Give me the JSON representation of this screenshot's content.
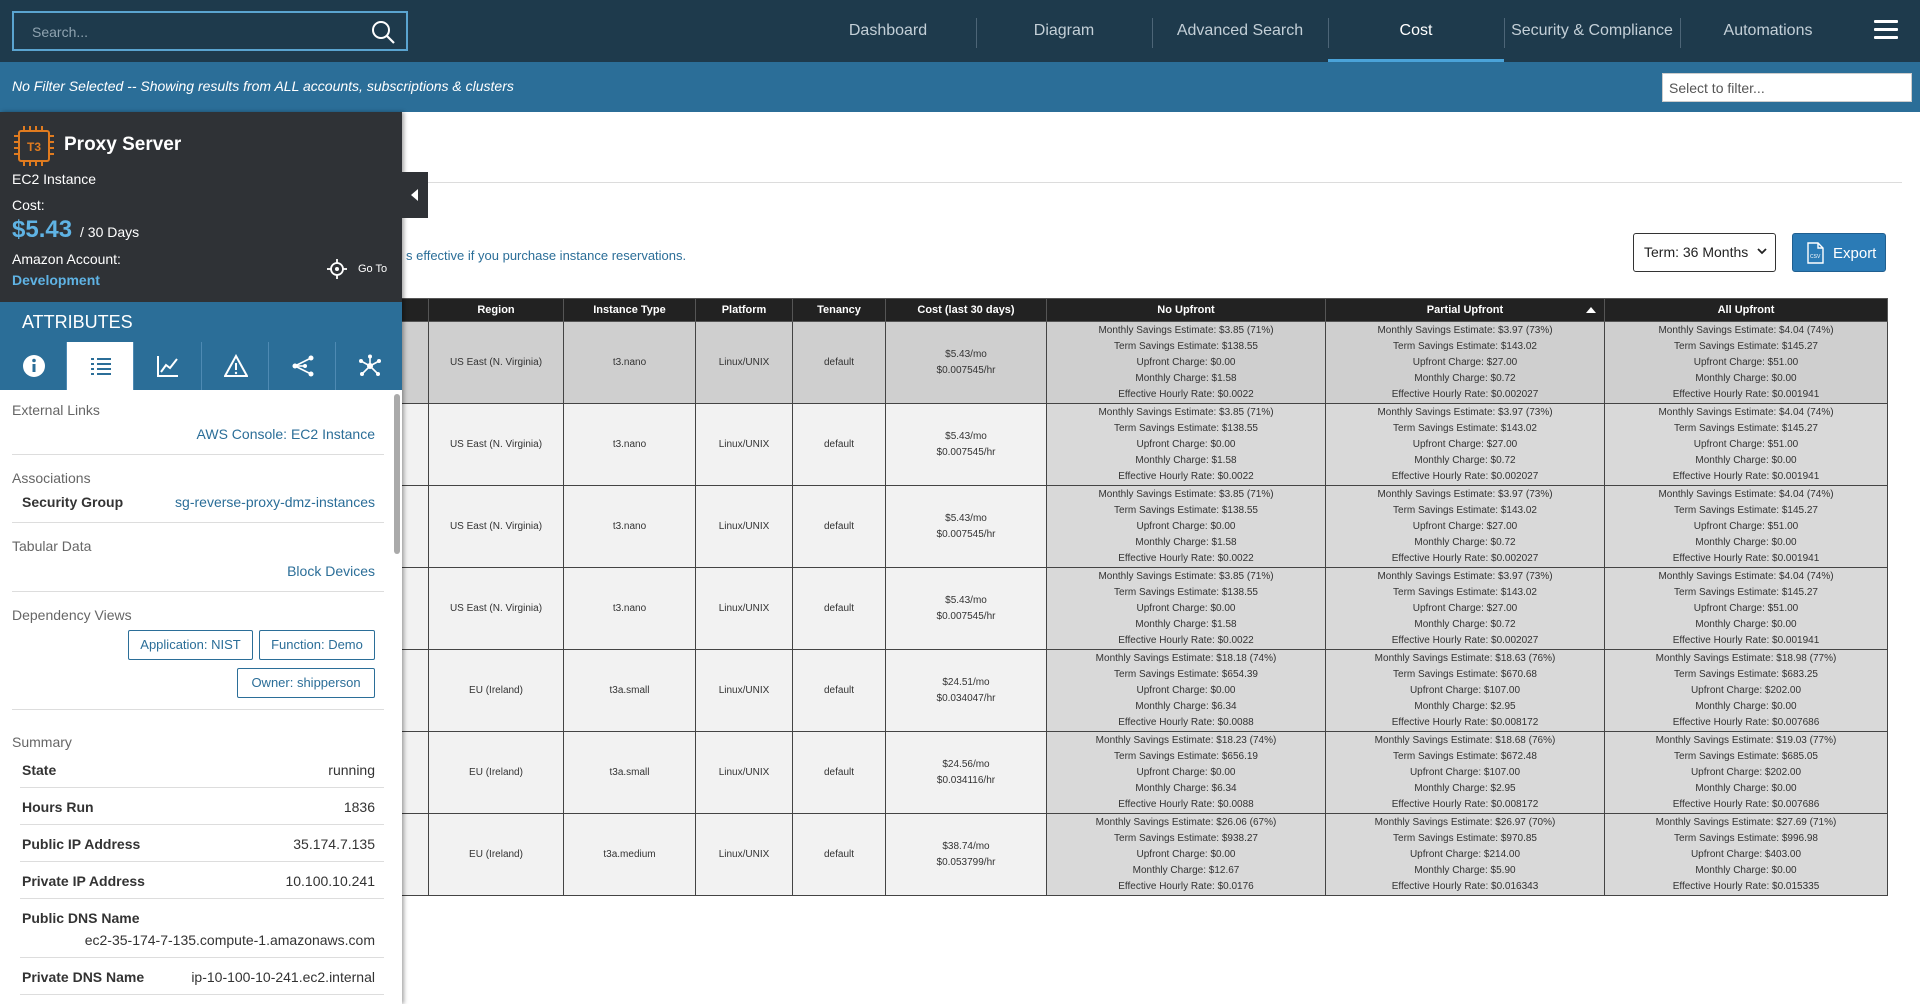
{
  "search": {
    "placeholder": "Search..."
  },
  "nav": {
    "tabs": [
      "Dashboard",
      "Diagram",
      "Advanced Search",
      "Cost",
      "Security & Compliance",
      "Automations"
    ],
    "active": "Cost"
  },
  "filter": {
    "text": "No Filter Selected -- Showing results from ALL accounts, subscriptions & clusters",
    "placeholder": "Select to filter..."
  },
  "main": {
    "info_text": "s effective if you purchase instance reservations.",
    "term_label": "Term: 36 Months",
    "export_label": "Export"
  },
  "table": {
    "headers": [
      "Region",
      "Instance Type",
      "Platform",
      "Tenancy",
      "Cost (last 30 days)",
      "No Upfront",
      "Partial Upfront",
      "All Upfront"
    ],
    "rows": [
      {
        "region": "US East (N. Virginia)",
        "type": "t3.nano",
        "platform": "Linux/UNIX",
        "tenancy": "default",
        "cost": [
          "$5.43/mo",
          "$0.007545/hr"
        ],
        "no": [
          "Monthly Savings Estimate: $3.85 (71%)",
          "Term Savings Estimate: $138.55",
          "Upfront Charge: $0.00",
          "Monthly Charge: $1.58",
          "Effective Hourly Rate: $0.0022"
        ],
        "partial": [
          "Monthly Savings Estimate: $3.97 (73%)",
          "Term Savings Estimate: $143.02",
          "Upfront Charge: $27.00",
          "Monthly Charge: $0.72",
          "Effective Hourly Rate: $0.002027"
        ],
        "all": [
          "Monthly Savings Estimate: $4.04 (74%)",
          "Term Savings Estimate: $145.27",
          "Upfront Charge: $51.00",
          "Monthly Charge: $0.00",
          "Effective Hourly Rate: $0.001941"
        ]
      },
      {
        "region": "US East (N. Virginia)",
        "type": "t3.nano",
        "platform": "Linux/UNIX",
        "tenancy": "default",
        "cost": [
          "$5.43/mo",
          "$0.007545/hr"
        ],
        "no": [
          "Monthly Savings Estimate: $3.85 (71%)",
          "Term Savings Estimate: $138.55",
          "Upfront Charge: $0.00",
          "Monthly Charge: $1.58",
          "Effective Hourly Rate: $0.0022"
        ],
        "partial": [
          "Monthly Savings Estimate: $3.97 (73%)",
          "Term Savings Estimate: $143.02",
          "Upfront Charge: $27.00",
          "Monthly Charge: $0.72",
          "Effective Hourly Rate: $0.002027"
        ],
        "all": [
          "Monthly Savings Estimate: $4.04 (74%)",
          "Term Savings Estimate: $145.27",
          "Upfront Charge: $51.00",
          "Monthly Charge: $0.00",
          "Effective Hourly Rate: $0.001941"
        ]
      },
      {
        "region": "US East (N. Virginia)",
        "type": "t3.nano",
        "platform": "Linux/UNIX",
        "tenancy": "default",
        "cost": [
          "$5.43/mo",
          "$0.007545/hr"
        ],
        "no": [
          "Monthly Savings Estimate: $3.85 (71%)",
          "Term Savings Estimate: $138.55",
          "Upfront Charge: $0.00",
          "Monthly Charge: $1.58",
          "Effective Hourly Rate: $0.0022"
        ],
        "partial": [
          "Monthly Savings Estimate: $3.97 (73%)",
          "Term Savings Estimate: $143.02",
          "Upfront Charge: $27.00",
          "Monthly Charge: $0.72",
          "Effective Hourly Rate: $0.002027"
        ],
        "all": [
          "Monthly Savings Estimate: $4.04 (74%)",
          "Term Savings Estimate: $145.27",
          "Upfront Charge: $51.00",
          "Monthly Charge: $0.00",
          "Effective Hourly Rate: $0.001941"
        ]
      },
      {
        "region": "US East (N. Virginia)",
        "type": "t3.nano",
        "platform": "Linux/UNIX",
        "tenancy": "default",
        "cost": [
          "$5.43/mo",
          "$0.007545/hr"
        ],
        "no": [
          "Monthly Savings Estimate: $3.85 (71%)",
          "Term Savings Estimate: $138.55",
          "Upfront Charge: $0.00",
          "Monthly Charge: $1.58",
          "Effective Hourly Rate: $0.0022"
        ],
        "partial": [
          "Monthly Savings Estimate: $3.97 (73%)",
          "Term Savings Estimate: $143.02",
          "Upfront Charge: $27.00",
          "Monthly Charge: $0.72",
          "Effective Hourly Rate: $0.002027"
        ],
        "all": [
          "Monthly Savings Estimate: $4.04 (74%)",
          "Term Savings Estimate: $145.27",
          "Upfront Charge: $51.00",
          "Monthly Charge: $0.00",
          "Effective Hourly Rate: $0.001941"
        ]
      },
      {
        "region": "EU (Ireland)",
        "type": "t3a.small",
        "platform": "Linux/UNIX",
        "tenancy": "default",
        "cost": [
          "$24.51/mo",
          "$0.034047/hr"
        ],
        "no": [
          "Monthly Savings Estimate: $18.18 (74%)",
          "Term Savings Estimate: $654.39",
          "Upfront Charge: $0.00",
          "Monthly Charge: $6.34",
          "Effective Hourly Rate: $0.0088"
        ],
        "partial": [
          "Monthly Savings Estimate: $18.63 (76%)",
          "Term Savings Estimate: $670.68",
          "Upfront Charge: $107.00",
          "Monthly Charge: $2.95",
          "Effective Hourly Rate: $0.008172"
        ],
        "all": [
          "Monthly Savings Estimate: $18.98 (77%)",
          "Term Savings Estimate: $683.25",
          "Upfront Charge: $202.00",
          "Monthly Charge: $0.00",
          "Effective Hourly Rate: $0.007686"
        ]
      },
      {
        "region": "EU (Ireland)",
        "type": "t3a.small",
        "platform": "Linux/UNIX",
        "tenancy": "default",
        "cost": [
          "$24.56/mo",
          "$0.034116/hr"
        ],
        "no": [
          "Monthly Savings Estimate: $18.23 (74%)",
          "Term Savings Estimate: $656.19",
          "Upfront Charge: $0.00",
          "Monthly Charge: $6.34",
          "Effective Hourly Rate: $0.0088"
        ],
        "partial": [
          "Monthly Savings Estimate: $18.68 (76%)",
          "Term Savings Estimate: $672.48",
          "Upfront Charge: $107.00",
          "Monthly Charge: $2.95",
          "Effective Hourly Rate: $0.008172"
        ],
        "all": [
          "Monthly Savings Estimate: $19.03 (77%)",
          "Term Savings Estimate: $685.05",
          "Upfront Charge: $202.00",
          "Monthly Charge: $0.00",
          "Effective Hourly Rate: $0.007686"
        ]
      },
      {
        "region": "EU (Ireland)",
        "type": "t3a.medium",
        "platform": "Linux/UNIX",
        "tenancy": "default",
        "cost": [
          "$38.74/mo",
          "$0.053799/hr"
        ],
        "no": [
          "Monthly Savings Estimate: $26.06 (67%)",
          "Term Savings Estimate: $938.27",
          "Upfront Charge: $0.00",
          "Monthly Charge: $12.67",
          "Effective Hourly Rate: $0.0176"
        ],
        "partial": [
          "Monthly Savings Estimate: $26.97 (70%)",
          "Term Savings Estimate: $970.85",
          "Upfront Charge: $214.00",
          "Monthly Charge: $5.90",
          "Effective Hourly Rate: $0.016343"
        ],
        "all": [
          "Monthly Savings Estimate: $27.69 (71%)",
          "Term Savings Estimate: $996.98",
          "Upfront Charge: $403.00",
          "Monthly Charge: $0.00",
          "Effective Hourly Rate: $0.015335"
        ]
      }
    ]
  },
  "panel": {
    "badge": "T3",
    "title": "Proxy Server",
    "type": "EC2 Instance",
    "cost_label": "Cost:",
    "cost_value": "$5.43",
    "cost_period": "/ 30 Days",
    "account_label": "Amazon Account:",
    "account_value": "Development",
    "goto_label": "Go To",
    "attributes_label": "ATTRIBUTES",
    "icon_tabs": [
      "info-icon",
      "list-icon",
      "chart-icon",
      "warning-icon",
      "share-icon",
      "network-icon"
    ],
    "external_links_title": "External Links",
    "external_link": "AWS Console: EC2 Instance",
    "associations_title": "Associations",
    "security_group_key": "Security Group",
    "security_group_val": "sg-reverse-proxy-dmz-instances",
    "tabular_title": "Tabular Data",
    "tabular_link": "Block Devices",
    "dependency_title": "Dependency Views",
    "dependency_buttons": [
      "Application: NIST",
      "Function: Demo",
      "Owner: shipperson"
    ],
    "summary_title": "Summary",
    "summary": [
      {
        "key": "State",
        "val": "running"
      },
      {
        "key": "Hours Run",
        "val": "1836"
      },
      {
        "key": "Public IP Address",
        "val": "35.174.7.135"
      },
      {
        "key": "Private IP Address",
        "val": "10.100.10.241"
      },
      {
        "key": "Public DNS Name",
        "val": "ec2-35-174-7-135.compute-1.amazonaws.com"
      },
      {
        "key": "Private DNS Name",
        "val": "ip-10-100-10-241.ec2.internal"
      }
    ]
  },
  "colors": {
    "topbar": "#1e3a4c",
    "accent": "#2b6e98",
    "link": "#5fb3e4",
    "panel_header": "#2f3236",
    "badge": "#e07b1f"
  }
}
